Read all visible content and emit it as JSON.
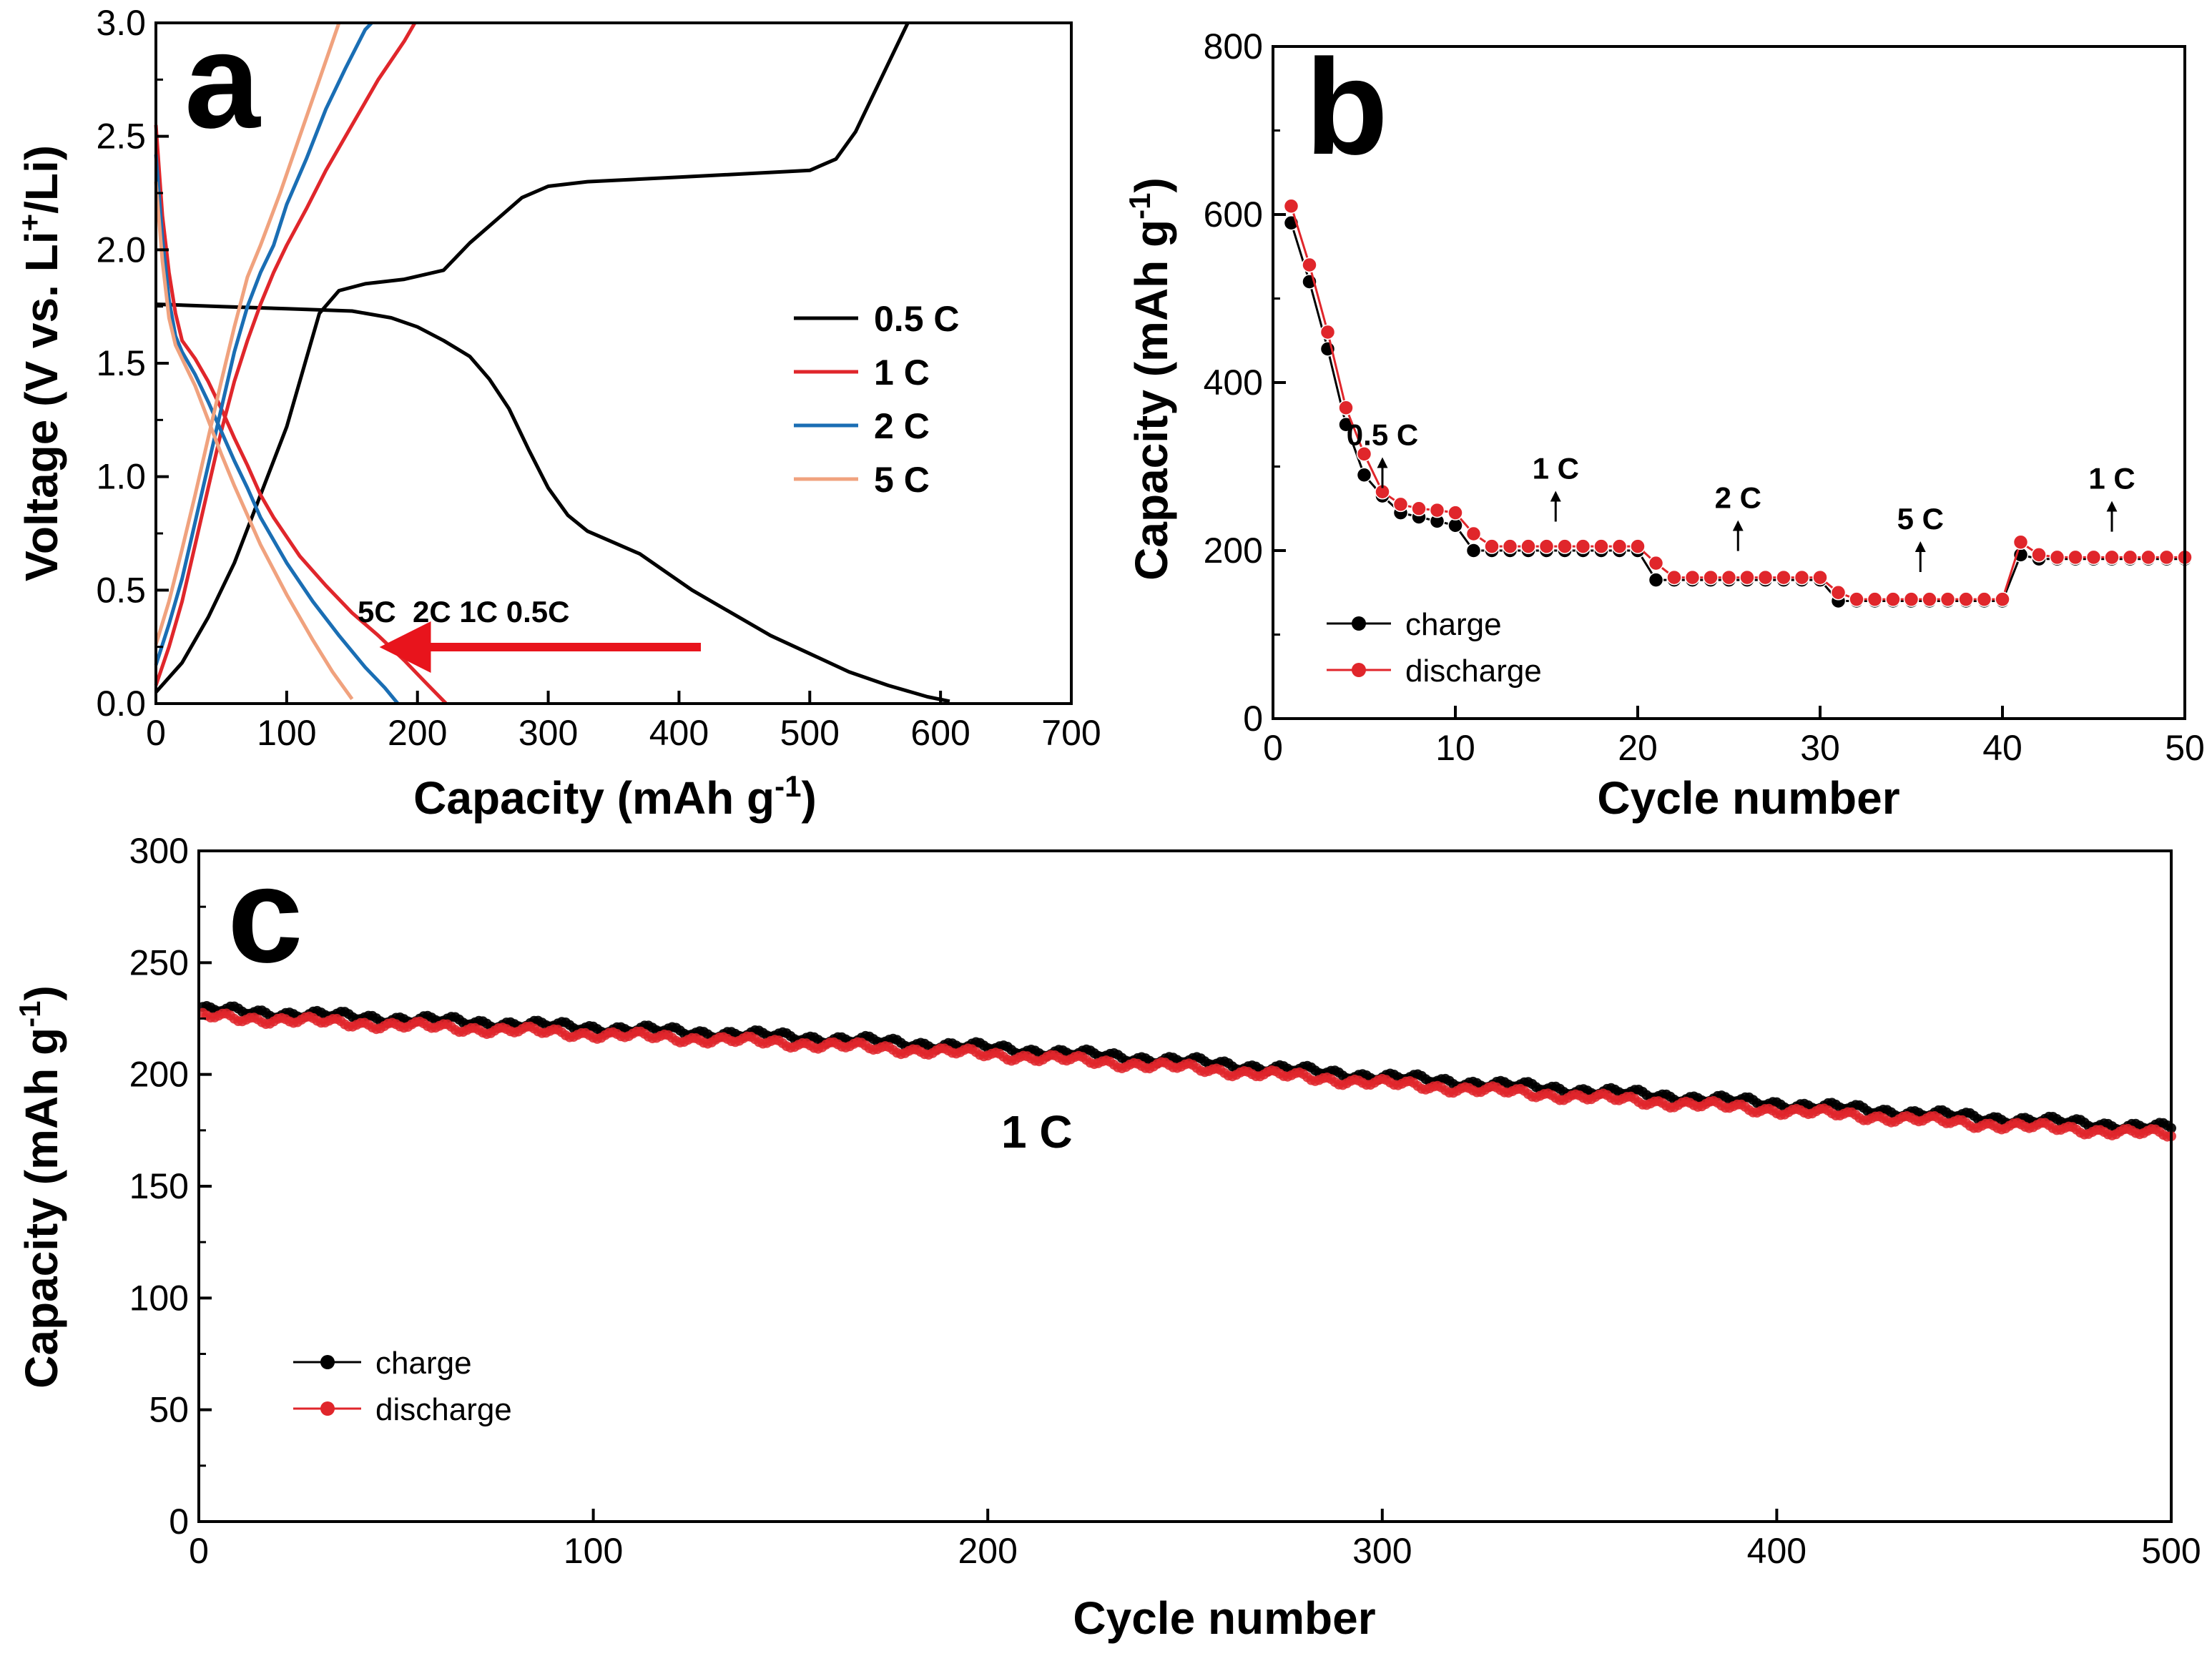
{
  "chart_data": [
    {
      "panel": "a",
      "type": "line",
      "xlabel": "Capacity (mAh g",
      "xlabel_sup": "-1",
      "xlabel_close": ")",
      "ylabel_parts": [
        "Voltage (V vs. Li",
        "+",
        "/Li)"
      ],
      "xlim": [
        0,
        700
      ],
      "ylim": [
        0,
        3.0
      ],
      "xticks": [
        "0",
        "100",
        "200",
        "300",
        "400",
        "500",
        "600",
        "700"
      ],
      "yticks": [
        "0.0",
        "0.5",
        "1.0",
        "1.5",
        "2.0",
        "2.5",
        "3.0"
      ],
      "legend_position": "center-right",
      "annotation": "5C  2C 1C 0.5C",
      "arrow_color": "#e8141c",
      "series": [
        {
          "name": "0.5 C",
          "color": "#000000",
          "discharge": [
            [
              0,
              1.76
            ],
            [
              50,
              1.75
            ],
            [
              100,
              1.74
            ],
            [
              150,
              1.73
            ],
            [
              180,
              1.7
            ],
            [
              200,
              1.66
            ],
            [
              220,
              1.6
            ],
            [
              240,
              1.53
            ],
            [
              255,
              1.43
            ],
            [
              270,
              1.3
            ],
            [
              285,
              1.12
            ],
            [
              300,
              0.95
            ],
            [
              315,
              0.83
            ],
            [
              330,
              0.76
            ],
            [
              350,
              0.71
            ],
            [
              370,
              0.66
            ],
            [
              390,
              0.58
            ],
            [
              410,
              0.5
            ],
            [
              440,
              0.4
            ],
            [
              470,
              0.3
            ],
            [
              500,
              0.22
            ],
            [
              530,
              0.14
            ],
            [
              560,
              0.08
            ],
            [
              590,
              0.03
            ],
            [
              607,
              0.01
            ]
          ],
          "charge": [
            [
              0,
              0.05
            ],
            [
              20,
              0.18
            ],
            [
              40,
              0.38
            ],
            [
              60,
              0.62
            ],
            [
              80,
              0.92
            ],
            [
              100,
              1.22
            ],
            [
              115,
              1.52
            ],
            [
              125,
              1.72
            ],
            [
              140,
              1.82
            ],
            [
              160,
              1.85
            ],
            [
              190,
              1.87
            ],
            [
              220,
              1.91
            ],
            [
              240,
              2.03
            ],
            [
              260,
              2.13
            ],
            [
              280,
              2.23
            ],
            [
              300,
              2.28
            ],
            [
              330,
              2.3
            ],
            [
              400,
              2.32
            ],
            [
              500,
              2.35
            ],
            [
              520,
              2.4
            ],
            [
              535,
              2.52
            ],
            [
              550,
              2.7
            ],
            [
              565,
              2.88
            ],
            [
              575,
              3.0
            ]
          ]
        },
        {
          "name": "1 C",
          "color": "#e0262b",
          "discharge": [
            [
              0,
              2.55
            ],
            [
              5,
              2.15
            ],
            [
              10,
              1.9
            ],
            [
              15,
              1.72
            ],
            [
              20,
              1.6
            ],
            [
              30,
              1.52
            ],
            [
              40,
              1.42
            ],
            [
              50,
              1.3
            ],
            [
              60,
              1.17
            ],
            [
              70,
              1.05
            ],
            [
              80,
              0.92
            ],
            [
              90,
              0.82
            ],
            [
              110,
              0.65
            ],
            [
              130,
              0.52
            ],
            [
              150,
              0.4
            ],
            [
              170,
              0.3
            ],
            [
              190,
              0.19
            ],
            [
              205,
              0.1
            ],
            [
              222,
              0.0
            ]
          ],
          "charge": [
            [
              0,
              0.08
            ],
            [
              10,
              0.25
            ],
            [
              20,
              0.45
            ],
            [
              30,
              0.7
            ],
            [
              40,
              0.95
            ],
            [
              50,
              1.2
            ],
            [
              60,
              1.42
            ],
            [
              70,
              1.6
            ],
            [
              80,
              1.76
            ],
            [
              90,
              1.9
            ],
            [
              100,
              2.02
            ],
            [
              115,
              2.18
            ],
            [
              130,
              2.35
            ],
            [
              150,
              2.55
            ],
            [
              170,
              2.75
            ],
            [
              190,
              2.92
            ],
            [
              198,
              3.0
            ]
          ]
        },
        {
          "name": "2 C",
          "color": "#1a6eb4",
          "discharge": [
            [
              0,
              2.42
            ],
            [
              5,
              2.05
            ],
            [
              10,
              1.78
            ],
            [
              15,
              1.62
            ],
            [
              20,
              1.55
            ],
            [
              30,
              1.45
            ],
            [
              40,
              1.33
            ],
            [
              50,
              1.2
            ],
            [
              60,
              1.07
            ],
            [
              70,
              0.95
            ],
            [
              80,
              0.82
            ],
            [
              100,
              0.62
            ],
            [
              120,
              0.45
            ],
            [
              140,
              0.3
            ],
            [
              160,
              0.16
            ],
            [
              175,
              0.07
            ],
            [
              185,
              0.0
            ]
          ],
          "charge": [
            [
              0,
              0.17
            ],
            [
              10,
              0.35
            ],
            [
              20,
              0.55
            ],
            [
              30,
              0.8
            ],
            [
              40,
              1.05
            ],
            [
              50,
              1.3
            ],
            [
              60,
              1.55
            ],
            [
              70,
              1.75
            ],
            [
              80,
              1.9
            ],
            [
              90,
              2.02
            ],
            [
              100,
              2.2
            ],
            [
              115,
              2.4
            ],
            [
              130,
              2.62
            ],
            [
              145,
              2.8
            ],
            [
              160,
              2.97
            ],
            [
              165,
              3.0
            ]
          ]
        },
        {
          "name": "5 C",
          "color": "#f0a27e",
          "discharge": [
            [
              0,
              2.3
            ],
            [
              5,
              1.95
            ],
            [
              10,
              1.7
            ],
            [
              15,
              1.58
            ],
            [
              20,
              1.52
            ],
            [
              30,
              1.4
            ],
            [
              40,
              1.25
            ],
            [
              50,
              1.1
            ],
            [
              60,
              0.96
            ],
            [
              70,
              0.83
            ],
            [
              80,
              0.7
            ],
            [
              100,
              0.48
            ],
            [
              120,
              0.28
            ],
            [
              135,
              0.14
            ],
            [
              150,
              0.02
            ]
          ],
          "charge": [
            [
              0,
              0.26
            ],
            [
              10,
              0.45
            ],
            [
              20,
              0.68
            ],
            [
              30,
              0.92
            ],
            [
              40,
              1.17
            ],
            [
              50,
              1.42
            ],
            [
              60,
              1.66
            ],
            [
              70,
              1.88
            ],
            [
              80,
              2.02
            ],
            [
              95,
              2.25
            ],
            [
              110,
              2.5
            ],
            [
              125,
              2.75
            ],
            [
              140,
              3.0
            ]
          ]
        }
      ]
    },
    {
      "panel": "b",
      "type": "line",
      "xlabel": "Cycle number",
      "ylabel": "Capacity (mAh g",
      "ylabel_sup": "-1",
      "ylabel_close": ")",
      "xlim": [
        0,
        50
      ],
      "ylim": [
        0,
        800
      ],
      "xticks": [
        "0",
        "10",
        "20",
        "30",
        "40",
        "50"
      ],
      "yticks": [
        "0",
        "200",
        "400",
        "600",
        "800"
      ],
      "legend_position": "bottom-left",
      "rate_labels": [
        {
          "text": "0.5 C",
          "x": 6,
          "y": 300
        },
        {
          "text": "1 C",
          "x": 15.5,
          "y": 260
        },
        {
          "text": "2 C",
          "x": 25.5,
          "y": 225
        },
        {
          "text": "5 C",
          "x": 35.5,
          "y": 200
        },
        {
          "text": "1 C",
          "x": 46,
          "y": 248
        }
      ],
      "x": [
        1,
        2,
        3,
        4,
        5,
        6,
        7,
        8,
        9,
        10,
        11,
        12,
        13,
        14,
        15,
        16,
        17,
        18,
        19,
        20,
        21,
        22,
        23,
        24,
        25,
        26,
        27,
        28,
        29,
        30,
        31,
        32,
        33,
        34,
        35,
        36,
        37,
        38,
        39,
        40,
        41,
        42,
        43,
        44,
        45,
        46,
        47,
        48,
        49,
        50
      ],
      "series": [
        {
          "name": "charge",
          "color": "#000000",
          "values": [
            590,
            520,
            440,
            350,
            290,
            265,
            245,
            240,
            235,
            230,
            200,
            200,
            200,
            200,
            200,
            200,
            200,
            200,
            200,
            200,
            165,
            165,
            165,
            165,
            165,
            165,
            165,
            165,
            165,
            165,
            140,
            140,
            140,
            140,
            140,
            140,
            140,
            140,
            140,
            140,
            195,
            190,
            190,
            190,
            190,
            190,
            190,
            190,
            190,
            190
          ]
        },
        {
          "name": "discharge",
          "color": "#e0262b",
          "values": [
            610,
            540,
            460,
            370,
            315,
            270,
            255,
            250,
            248,
            245,
            220,
            205,
            205,
            205,
            205,
            205,
            205,
            205,
            205,
            205,
            185,
            168,
            168,
            168,
            168,
            168,
            168,
            168,
            168,
            168,
            150,
            142,
            142,
            142,
            142,
            142,
            142,
            142,
            142,
            142,
            210,
            195,
            192,
            192,
            192,
            192,
            192,
            192,
            192,
            192
          ]
        }
      ]
    },
    {
      "panel": "c",
      "type": "line",
      "xlabel": "Cycle number",
      "ylabel": "Capacity (mAh g",
      "ylabel_sup": "-1",
      "ylabel_close": ")",
      "xlim": [
        0,
        500
      ],
      "ylim": [
        0,
        300
      ],
      "xticks": [
        "0",
        "100",
        "200",
        "300",
        "400",
        "500"
      ],
      "yticks": [
        "0",
        "50",
        "100",
        "150",
        "200",
        "250",
        "300"
      ],
      "legend_position": "bottom-left",
      "annotation": "1 C",
      "series": [
        {
          "name": "charge",
          "color": "#000000",
          "x": [
            1,
            50,
            100,
            150,
            200,
            250,
            300,
            350,
            400,
            450,
            500
          ],
          "values": [
            229,
            225,
            221,
            217,
            212,
            206,
            199,
            193,
            187,
            181,
            176
          ]
        },
        {
          "name": "discharge",
          "color": "#e0262b",
          "x": [
            1,
            50,
            100,
            150,
            200,
            250,
            300,
            350,
            400,
            450,
            500
          ],
          "values": [
            226,
            222,
            218,
            214,
            209,
            203,
            196,
            190,
            184,
            178,
            173
          ]
        }
      ]
    }
  ],
  "panel_letters": [
    "a",
    "b",
    "c"
  ]
}
